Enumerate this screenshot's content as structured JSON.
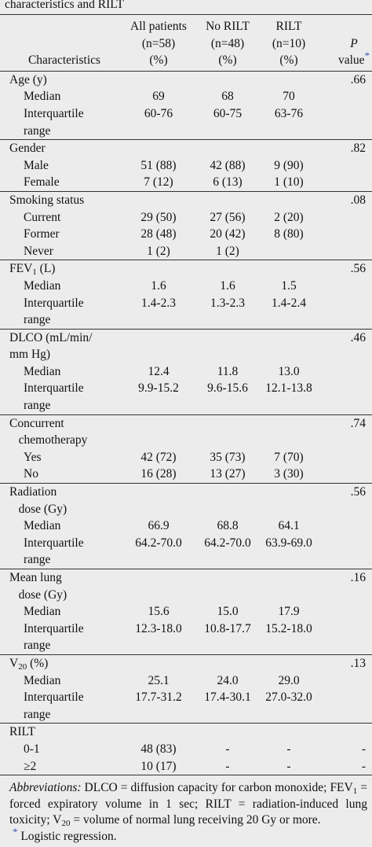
{
  "title": "characteristics and RILT",
  "header": [
    [
      [
        "Characteristics"
      ]
    ],
    [
      [
        "All patients"
      ],
      [
        "(n=58)"
      ],
      [
        "(%)"
      ]
    ],
    [
      [
        "No RILT"
      ],
      [
        "(n=48)"
      ],
      [
        "(%)"
      ]
    ],
    [
      [
        "RILT"
      ],
      [
        "(n=10)"
      ],
      [
        "(%)"
      ]
    ],
    [
      [
        {
          "i": "P"
        }
      ],
      [
        "value",
        {
          "sup": "*"
        }
      ]
    ]
  ],
  "groups": [
    {
      "rows": [
        {
          "level": 0,
          "label": [
            [
              "Age (y)"
            ]
          ],
          "values": [
            null,
            null,
            null
          ],
          "p": ".66"
        },
        {
          "level": 1,
          "label": [
            [
              "Median"
            ]
          ],
          "values": [
            "69",
            "68",
            "70"
          ]
        },
        {
          "level": 1,
          "label": [
            [
              "Interquartile"
            ],
            [
              "range"
            ]
          ],
          "values": [
            "60-76",
            "60-75",
            "63-76"
          ]
        }
      ]
    },
    {
      "rows": [
        {
          "level": 0,
          "label": [
            [
              "Gender"
            ]
          ],
          "values": [
            null,
            null,
            null
          ],
          "p": ".82"
        },
        {
          "level": 1,
          "label": [
            [
              "Male"
            ]
          ],
          "values": [
            "51 (88)",
            "42 (88)",
            "9 (90)"
          ]
        },
        {
          "level": 1,
          "label": [
            [
              "Female"
            ]
          ],
          "values": [
            "7 (12)",
            "6 (13)",
            "1 (10)"
          ]
        }
      ]
    },
    {
      "rows": [
        {
          "level": 0,
          "label": [
            [
              "Smoking status"
            ]
          ],
          "values": [
            null,
            null,
            null
          ],
          "p": ".08"
        },
        {
          "level": 1,
          "label": [
            [
              "Current"
            ]
          ],
          "values": [
            "29 (50)",
            "27 (56)",
            "2 (20)"
          ]
        },
        {
          "level": 1,
          "label": [
            [
              "Former"
            ]
          ],
          "values": [
            "28 (48)",
            "20 (42)",
            "8 (80)"
          ]
        },
        {
          "level": 1,
          "label": [
            [
              "Never"
            ]
          ],
          "values": [
            "1 (2)",
            "1 (2)",
            null
          ]
        }
      ]
    },
    {
      "rows": [
        {
          "level": 0,
          "label": [
            [
              "FEV",
              {
                "sub": "1"
              },
              " (L)"
            ]
          ],
          "values": [
            null,
            null,
            null
          ],
          "p": ".56"
        },
        {
          "level": 1,
          "label": [
            [
              "Median"
            ]
          ],
          "values": [
            "1.6",
            "1.6",
            "1.5"
          ]
        },
        {
          "level": 1,
          "label": [
            [
              "Interquartile"
            ],
            [
              "range"
            ]
          ],
          "values": [
            "1.4-2.3",
            "1.3-2.3",
            "1.4-2.4"
          ]
        }
      ]
    },
    {
      "rows": [
        {
          "level": 0,
          "label": [
            [
              "DLCO (mL/min/"
            ],
            [
              "mm Hg)"
            ]
          ],
          "values": [
            null,
            null,
            null
          ],
          "p": ".46"
        },
        {
          "level": 1,
          "label": [
            [
              "Median"
            ]
          ],
          "values": [
            "12.4",
            "11.8",
            "13.0"
          ]
        },
        {
          "level": 1,
          "label": [
            [
              "Interquartile"
            ],
            [
              "range"
            ]
          ],
          "values": [
            "9.9-15.2",
            "9.6-15.6",
            "12.1-13.8"
          ]
        }
      ]
    },
    {
      "rows": [
        {
          "level": 0,
          "label": [
            [
              "Concurrent"
            ],
            [
              "   chemotherapy"
            ]
          ],
          "values": [
            null,
            null,
            null
          ],
          "p": ".74"
        },
        {
          "level": 1,
          "label": [
            [
              "Yes"
            ]
          ],
          "values": [
            "42 (72)",
            "35 (73)",
            "7 (70)"
          ]
        },
        {
          "level": 1,
          "label": [
            [
              "No"
            ]
          ],
          "values": [
            "16 (28)",
            "13 (27)",
            "3 (30)"
          ]
        }
      ]
    },
    {
      "rows": [
        {
          "level": 0,
          "label": [
            [
              "Radiation"
            ],
            [
              "   dose (Gy)"
            ]
          ],
          "values": [
            null,
            null,
            null
          ],
          "p": ".56"
        },
        {
          "level": 1,
          "label": [
            [
              "Median"
            ]
          ],
          "values": [
            "66.9",
            "68.8",
            "64.1"
          ]
        },
        {
          "level": 1,
          "label": [
            [
              "Interquartile"
            ],
            [
              "range"
            ]
          ],
          "values": [
            "64.2-70.0",
            "64.2-70.0",
            "63.9-69.0"
          ]
        }
      ]
    },
    {
      "rows": [
        {
          "level": 0,
          "label": [
            [
              "Mean lung"
            ],
            [
              "   dose (Gy)"
            ]
          ],
          "values": [
            null,
            null,
            null
          ],
          "p": ".16"
        },
        {
          "level": 1,
          "label": [
            [
              "Median"
            ]
          ],
          "values": [
            "15.6",
            "15.0",
            "17.9"
          ]
        },
        {
          "level": 1,
          "label": [
            [
              "Interquartile"
            ],
            [
              "range"
            ]
          ],
          "values": [
            "12.3-18.0",
            "10.8-17.7",
            "15.2-18.0"
          ]
        }
      ]
    },
    {
      "rows": [
        {
          "level": 0,
          "label": [
            [
              "V",
              {
                "sub": "20"
              },
              " (%)"
            ]
          ],
          "values": [
            null,
            null,
            null
          ],
          "p": ".13"
        },
        {
          "level": 1,
          "label": [
            [
              "Median"
            ]
          ],
          "values": [
            "25.1",
            "24.0",
            "29.0"
          ]
        },
        {
          "level": 1,
          "label": [
            [
              "Interquartile"
            ],
            [
              "range"
            ]
          ],
          "values": [
            "17.7-31.2",
            "17.4-30.1",
            "27.0-32.0"
          ]
        }
      ]
    },
    {
      "rows": [
        {
          "level": 0,
          "label": [
            [
              "RILT"
            ]
          ],
          "values": [
            null,
            null,
            null
          ]
        },
        {
          "level": 1,
          "label": [
            [
              "0-1"
            ]
          ],
          "values": [
            "48 (83)",
            "-",
            "-"
          ],
          "p": "-"
        },
        {
          "level": 1,
          "label": [
            [
              "≥2"
            ]
          ],
          "values": [
            "10 (17)",
            "-",
            "-"
          ],
          "p": "-"
        }
      ]
    }
  ],
  "footnotes": [
    [
      {
        "i": "Abbreviations:"
      },
      " DLCO = diffusion capacity for carbon monoxide; FEV",
      {
        "sub": "1"
      },
      " = forced expiratory volume in 1 sec; RILT = radiation-induced lung toxicity; V",
      {
        "sub": "20"
      },
      " = volume of normal lung receiving 20 Gy or more."
    ],
    [
      {
        "sup": "*"
      },
      " Logistic regression."
    ]
  ]
}
